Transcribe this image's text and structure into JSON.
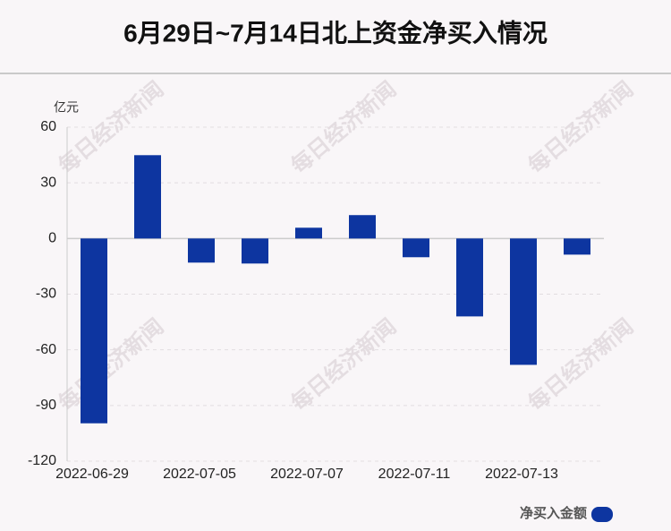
{
  "chart_data": {
    "type": "bar",
    "title": "6月29日~7月14日北上资金净买入情况",
    "y_unit": "亿元",
    "watermark": "每日经济新闻",
    "categories": [
      "2022-06-29",
      null,
      "2022-07-05",
      null,
      "2022-07-07",
      null,
      "2022-07-11",
      null,
      "2022-07-13",
      null
    ],
    "series": [
      {
        "name": "净买入金额",
        "color": "#0d35a0",
        "values": [
          -99.6,
          44.9,
          -13.0,
          -13.5,
          5.8,
          12.6,
          -10.1,
          -42.0,
          -68.1,
          -8.7
        ]
      }
    ],
    "ylim": [
      -120,
      60
    ],
    "yticks": [
      -120,
      -90,
      -60,
      -30,
      0,
      30,
      60
    ],
    "grid": true,
    "legend": "bottom-right"
  }
}
